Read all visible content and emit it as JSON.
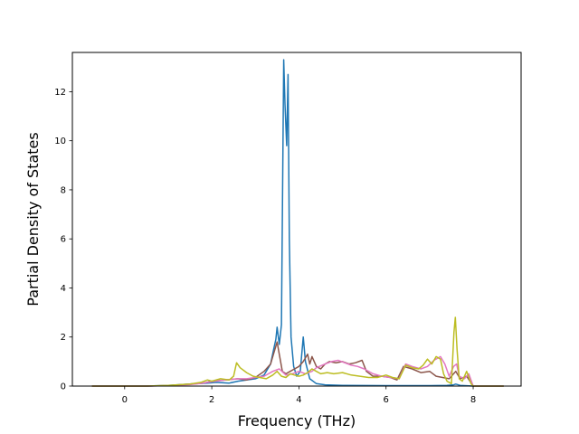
{
  "chart_data": {
    "type": "line",
    "title": "",
    "xlabel": "Frequency (THz)",
    "ylabel": "Partial Density of States",
    "xlim": [
      -1.2,
      9.1
    ],
    "ylim": [
      0,
      13.6
    ],
    "xticks": [
      0,
      2,
      4,
      6,
      8
    ],
    "yticks": [
      0,
      2,
      4,
      6,
      8,
      10,
      12
    ],
    "grid": false,
    "legend": "none",
    "series": [
      {
        "color": "#1f77b4",
        "points": [
          [
            -0.75,
            0
          ],
          [
            0.5,
            0
          ],
          [
            1.0,
            0.03
          ],
          [
            1.5,
            0.08
          ],
          [
            1.9,
            0.12
          ],
          [
            2.1,
            0.15
          ],
          [
            2.4,
            0.12
          ],
          [
            2.6,
            0.2
          ],
          [
            2.8,
            0.25
          ],
          [
            3.0,
            0.3
          ],
          [
            3.2,
            0.45
          ],
          [
            3.35,
            0.9
          ],
          [
            3.42,
            1.5
          ],
          [
            3.47,
            1.9
          ],
          [
            3.5,
            2.4
          ],
          [
            3.55,
            1.7
          ],
          [
            3.6,
            2.5
          ],
          [
            3.65,
            13.3
          ],
          [
            3.68,
            11.5
          ],
          [
            3.72,
            9.8
          ],
          [
            3.75,
            12.7
          ],
          [
            3.78,
            6.0
          ],
          [
            3.82,
            2.0
          ],
          [
            3.88,
            0.8
          ],
          [
            3.95,
            0.4
          ],
          [
            4.03,
            0.6
          ],
          [
            4.1,
            2.0
          ],
          [
            4.15,
            1.0
          ],
          [
            4.25,
            0.3
          ],
          [
            4.4,
            0.1
          ],
          [
            4.6,
            0.05
          ],
          [
            5.0,
            0.03
          ],
          [
            6.0,
            0.02
          ],
          [
            7.0,
            0.02
          ],
          [
            7.4,
            0.03
          ],
          [
            7.55,
            0.05
          ],
          [
            7.6,
            0.08
          ],
          [
            7.7,
            0.03
          ],
          [
            8.0,
            0
          ],
          [
            8.7,
            0
          ]
        ]
      },
      {
        "color": "#8c564b",
        "points": [
          [
            -0.75,
            0
          ],
          [
            0.5,
            0
          ],
          [
            1.0,
            0.02
          ],
          [
            1.5,
            0.08
          ],
          [
            1.8,
            0.12
          ],
          [
            2.0,
            0.2
          ],
          [
            2.3,
            0.25
          ],
          [
            2.6,
            0.3
          ],
          [
            2.8,
            0.25
          ],
          [
            3.0,
            0.35
          ],
          [
            3.2,
            0.6
          ],
          [
            3.35,
            0.9
          ],
          [
            3.45,
            1.5
          ],
          [
            3.5,
            1.8
          ],
          [
            3.55,
            1.3
          ],
          [
            3.62,
            0.6
          ],
          [
            3.7,
            0.5
          ],
          [
            3.8,
            0.6
          ],
          [
            3.9,
            0.7
          ],
          [
            4.0,
            0.8
          ],
          [
            4.1,
            1.0
          ],
          [
            4.2,
            1.3
          ],
          [
            4.25,
            0.9
          ],
          [
            4.3,
            1.2
          ],
          [
            4.4,
            0.8
          ],
          [
            4.5,
            0.7
          ],
          [
            4.6,
            0.9
          ],
          [
            4.7,
            1.0
          ],
          [
            4.85,
            0.95
          ],
          [
            5.0,
            1.0
          ],
          [
            5.15,
            0.9
          ],
          [
            5.3,
            0.95
          ],
          [
            5.45,
            1.05
          ],
          [
            5.55,
            0.6
          ],
          [
            5.7,
            0.4
          ],
          [
            5.9,
            0.4
          ],
          [
            6.1,
            0.35
          ],
          [
            6.25,
            0.25
          ],
          [
            6.4,
            0.8
          ],
          [
            6.6,
            0.7
          ],
          [
            6.8,
            0.55
          ],
          [
            7.0,
            0.6
          ],
          [
            7.15,
            0.4
          ],
          [
            7.3,
            0.35
          ],
          [
            7.45,
            0.3
          ],
          [
            7.55,
            0.5
          ],
          [
            7.6,
            0.6
          ],
          [
            7.7,
            0.3
          ],
          [
            7.85,
            0.4
          ],
          [
            8.0,
            0
          ],
          [
            8.7,
            0
          ]
        ]
      },
      {
        "color": "#e377c2",
        "points": [
          [
            -0.75,
            0
          ],
          [
            0.5,
            0
          ],
          [
            1.0,
            0.02
          ],
          [
            1.5,
            0.06
          ],
          [
            1.8,
            0.12
          ],
          [
            2.0,
            0.18
          ],
          [
            2.3,
            0.25
          ],
          [
            2.6,
            0.3
          ],
          [
            2.8,
            0.3
          ],
          [
            3.0,
            0.35
          ],
          [
            3.2,
            0.4
          ],
          [
            3.4,
            0.6
          ],
          [
            3.55,
            0.7
          ],
          [
            3.7,
            0.45
          ],
          [
            3.85,
            0.5
          ],
          [
            4.0,
            0.6
          ],
          [
            4.15,
            0.5
          ],
          [
            4.3,
            0.6
          ],
          [
            4.4,
            0.75
          ],
          [
            4.6,
            0.9
          ],
          [
            4.75,
            1.0
          ],
          [
            4.9,
            1.05
          ],
          [
            5.05,
            0.95
          ],
          [
            5.2,
            0.85
          ],
          [
            5.35,
            0.8
          ],
          [
            5.5,
            0.7
          ],
          [
            5.7,
            0.5
          ],
          [
            5.9,
            0.4
          ],
          [
            6.1,
            0.35
          ],
          [
            6.3,
            0.3
          ],
          [
            6.45,
            0.9
          ],
          [
            6.6,
            0.8
          ],
          [
            6.8,
            0.7
          ],
          [
            6.95,
            0.8
          ],
          [
            7.1,
            1.05
          ],
          [
            7.25,
            1.2
          ],
          [
            7.35,
            0.9
          ],
          [
            7.45,
            0.4
          ],
          [
            7.55,
            0.8
          ],
          [
            7.62,
            0.9
          ],
          [
            7.68,
            0.4
          ],
          [
            7.8,
            0.3
          ],
          [
            7.9,
            0.5
          ],
          [
            8.0,
            0
          ],
          [
            8.7,
            0
          ]
        ]
      },
      {
        "color": "#bcbd22",
        "points": [
          [
            -0.75,
            0
          ],
          [
            0.5,
            0
          ],
          [
            1.0,
            0.03
          ],
          [
            1.5,
            0.08
          ],
          [
            1.75,
            0.15
          ],
          [
            1.9,
            0.25
          ],
          [
            2.0,
            0.2
          ],
          [
            2.2,
            0.3
          ],
          [
            2.4,
            0.25
          ],
          [
            2.5,
            0.4
          ],
          [
            2.57,
            0.95
          ],
          [
            2.65,
            0.75
          ],
          [
            2.8,
            0.55
          ],
          [
            2.95,
            0.4
          ],
          [
            3.1,
            0.35
          ],
          [
            3.25,
            0.3
          ],
          [
            3.4,
            0.45
          ],
          [
            3.5,
            0.6
          ],
          [
            3.6,
            0.4
          ],
          [
            3.7,
            0.35
          ],
          [
            3.8,
            0.5
          ],
          [
            3.9,
            0.45
          ],
          [
            4.0,
            0.4
          ],
          [
            4.1,
            0.45
          ],
          [
            4.2,
            0.55
          ],
          [
            4.3,
            0.7
          ],
          [
            4.4,
            0.6
          ],
          [
            4.5,
            0.5
          ],
          [
            4.65,
            0.55
          ],
          [
            4.8,
            0.5
          ],
          [
            5.0,
            0.55
          ],
          [
            5.2,
            0.45
          ],
          [
            5.4,
            0.4
          ],
          [
            5.6,
            0.35
          ],
          [
            5.8,
            0.35
          ],
          [
            6.0,
            0.45
          ],
          [
            6.15,
            0.35
          ],
          [
            6.3,
            0.3
          ],
          [
            6.45,
            0.85
          ],
          [
            6.6,
            0.75
          ],
          [
            6.75,
            0.7
          ],
          [
            6.85,
            0.85
          ],
          [
            6.95,
            1.1
          ],
          [
            7.05,
            0.9
          ],
          [
            7.15,
            1.2
          ],
          [
            7.25,
            1.1
          ],
          [
            7.32,
            0.5
          ],
          [
            7.4,
            0.2
          ],
          [
            7.5,
            0.1
          ],
          [
            7.56,
            2.2
          ],
          [
            7.59,
            2.8
          ],
          [
            7.63,
            1.5
          ],
          [
            7.68,
            0.3
          ],
          [
            7.75,
            0.2
          ],
          [
            7.85,
            0.6
          ],
          [
            7.88,
            0.45
          ],
          [
            7.95,
            0.1
          ],
          [
            8.0,
            0
          ],
          [
            8.7,
            0
          ]
        ]
      }
    ]
  }
}
